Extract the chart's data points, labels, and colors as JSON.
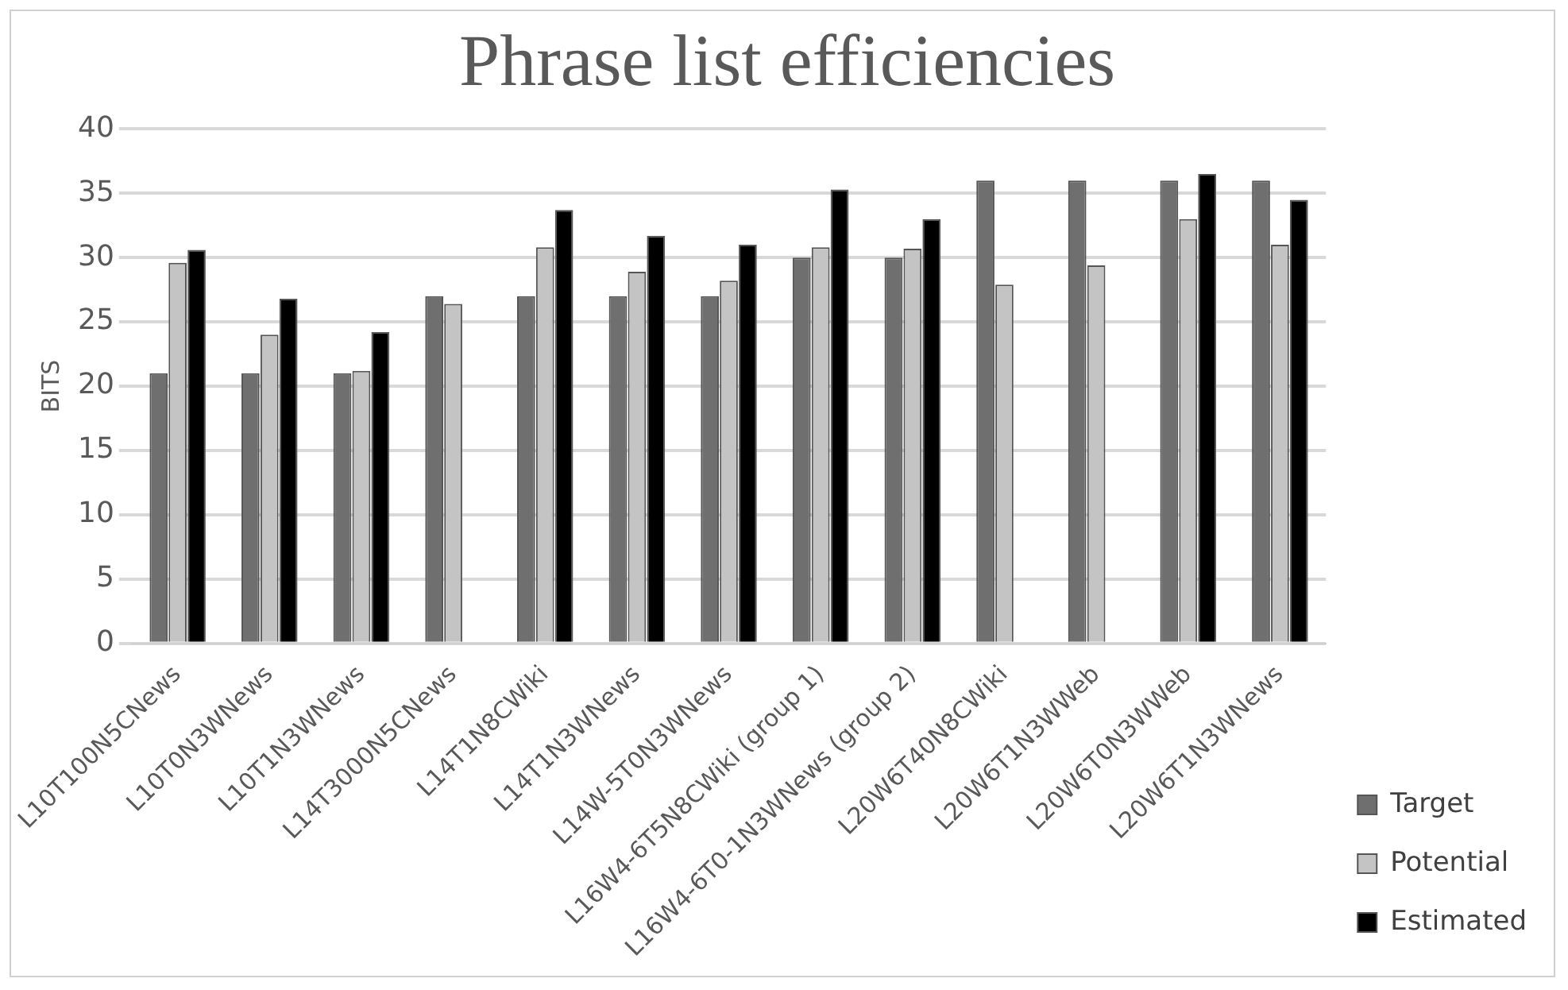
{
  "chart_data": {
    "type": "bar",
    "title": "Phrase list efficiencies",
    "ylabel": "BITS",
    "categories": [
      "L10T100N5CNews",
      "L10T0N3WNews",
      "L10T1N3WNews",
      "L14T3000N5CNews",
      "L14T1N8CWiki",
      "L14T1N3WNews",
      "L14W-5T0N3WNews",
      "L16W4-6T5N8CWiki (group 1)",
      "L16W4-6T0-1N3WNews (group 2)",
      "L20W6T40N8CWiki",
      "L20W6T1N3WWeb",
      "L20W6T0N3WWeb",
      "L20W6T1N3WNews"
    ],
    "series": [
      {
        "name": "Target",
        "color": "#6f6f6f",
        "values": [
          21,
          21,
          21,
          27,
          27,
          27,
          27,
          30,
          30,
          36,
          36,
          36,
          36
        ]
      },
      {
        "name": "Potential",
        "color": "#c4c4c4",
        "values": [
          29.6,
          24,
          21.2,
          26.4,
          30.8,
          28.9,
          28.2,
          30.8,
          30.7,
          27.9,
          29.4,
          33,
          31
        ]
      },
      {
        "name": "Estimated",
        "color": "#000000",
        "values": [
          30.6,
          26.8,
          24.2,
          null,
          33.7,
          31.7,
          31,
          35.3,
          33,
          null,
          null,
          36.5,
          34.5
        ]
      }
    ],
    "ylim": [
      0,
      40
    ],
    "yticks": [
      0,
      5,
      10,
      15,
      20,
      25,
      30,
      35,
      40
    ],
    "grid": "y",
    "legend": "bottom right"
  }
}
